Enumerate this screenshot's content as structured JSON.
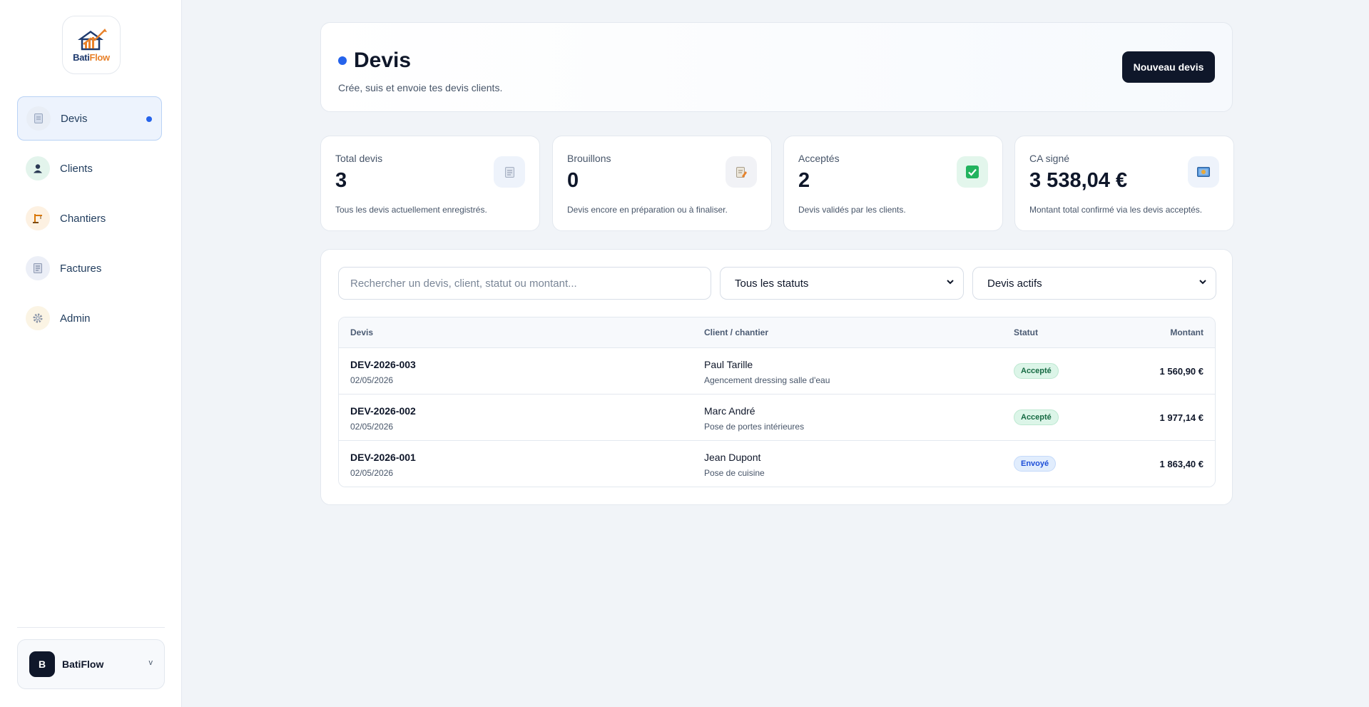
{
  "brand": {
    "name_part1": "Bati",
    "name_part2": "Flow"
  },
  "sidebar": {
    "items": [
      {
        "label": "Devis",
        "icon": "document-icon",
        "active": true
      },
      {
        "label": "Clients",
        "icon": "user-icon"
      },
      {
        "label": "Chantiers",
        "icon": "crane-icon"
      },
      {
        "label": "Factures",
        "icon": "invoice-icon"
      },
      {
        "label": "Admin",
        "icon": "gear-icon"
      }
    ],
    "account": {
      "initial": "B",
      "name": "BatiFlow",
      "chevron": "v"
    }
  },
  "header": {
    "title": "Devis",
    "subtitle": "Crée, suis et envoie tes devis clients.",
    "new_button": "Nouveau devis"
  },
  "stats": [
    {
      "label": "Total devis",
      "value": "3",
      "desc": "Tous les devis actuellement enregistrés.",
      "icon": "document-icon"
    },
    {
      "label": "Brouillons",
      "value": "0",
      "desc": "Devis encore en préparation ou à finaliser.",
      "icon": "draft-icon"
    },
    {
      "label": "Acceptés",
      "value": "2",
      "desc": "Devis validés par les clients.",
      "icon": "check-icon"
    },
    {
      "label": "CA signé",
      "value": "3 538,04 €",
      "desc": "Montant total confirmé via les devis acceptés.",
      "icon": "money-icon"
    }
  ],
  "filters": {
    "search_placeholder": "Rechercher un devis, client, statut ou montant...",
    "status_select": "Tous les statuts",
    "scope_select": "Devis actifs"
  },
  "table": {
    "columns": {
      "ref": "Devis",
      "client": "Client / chantier",
      "status": "Statut",
      "amount": "Montant"
    },
    "rows": [
      {
        "ref": "DEV-2026-003",
        "date": "02/05/2026",
        "client": "Paul Tarille",
        "site": "Agencement dressing salle d'eau",
        "status": "Accepté",
        "amount": "1 560,90 €"
      },
      {
        "ref": "DEV-2026-002",
        "date": "02/05/2026",
        "client": "Marc André",
        "site": "Pose de portes intérieures",
        "status": "Accepté",
        "amount": "1 977,14 €"
      },
      {
        "ref": "DEV-2026-001",
        "date": "02/05/2026",
        "client": "Jean Dupont",
        "site": "Pose de cuisine",
        "status": "Envoyé",
        "amount": "1 863,40 €"
      }
    ]
  },
  "colors": {
    "accent": "#2563eb",
    "dark": "#0f172a",
    "accepted": "#166a43",
    "sent": "#1d4ed8"
  }
}
